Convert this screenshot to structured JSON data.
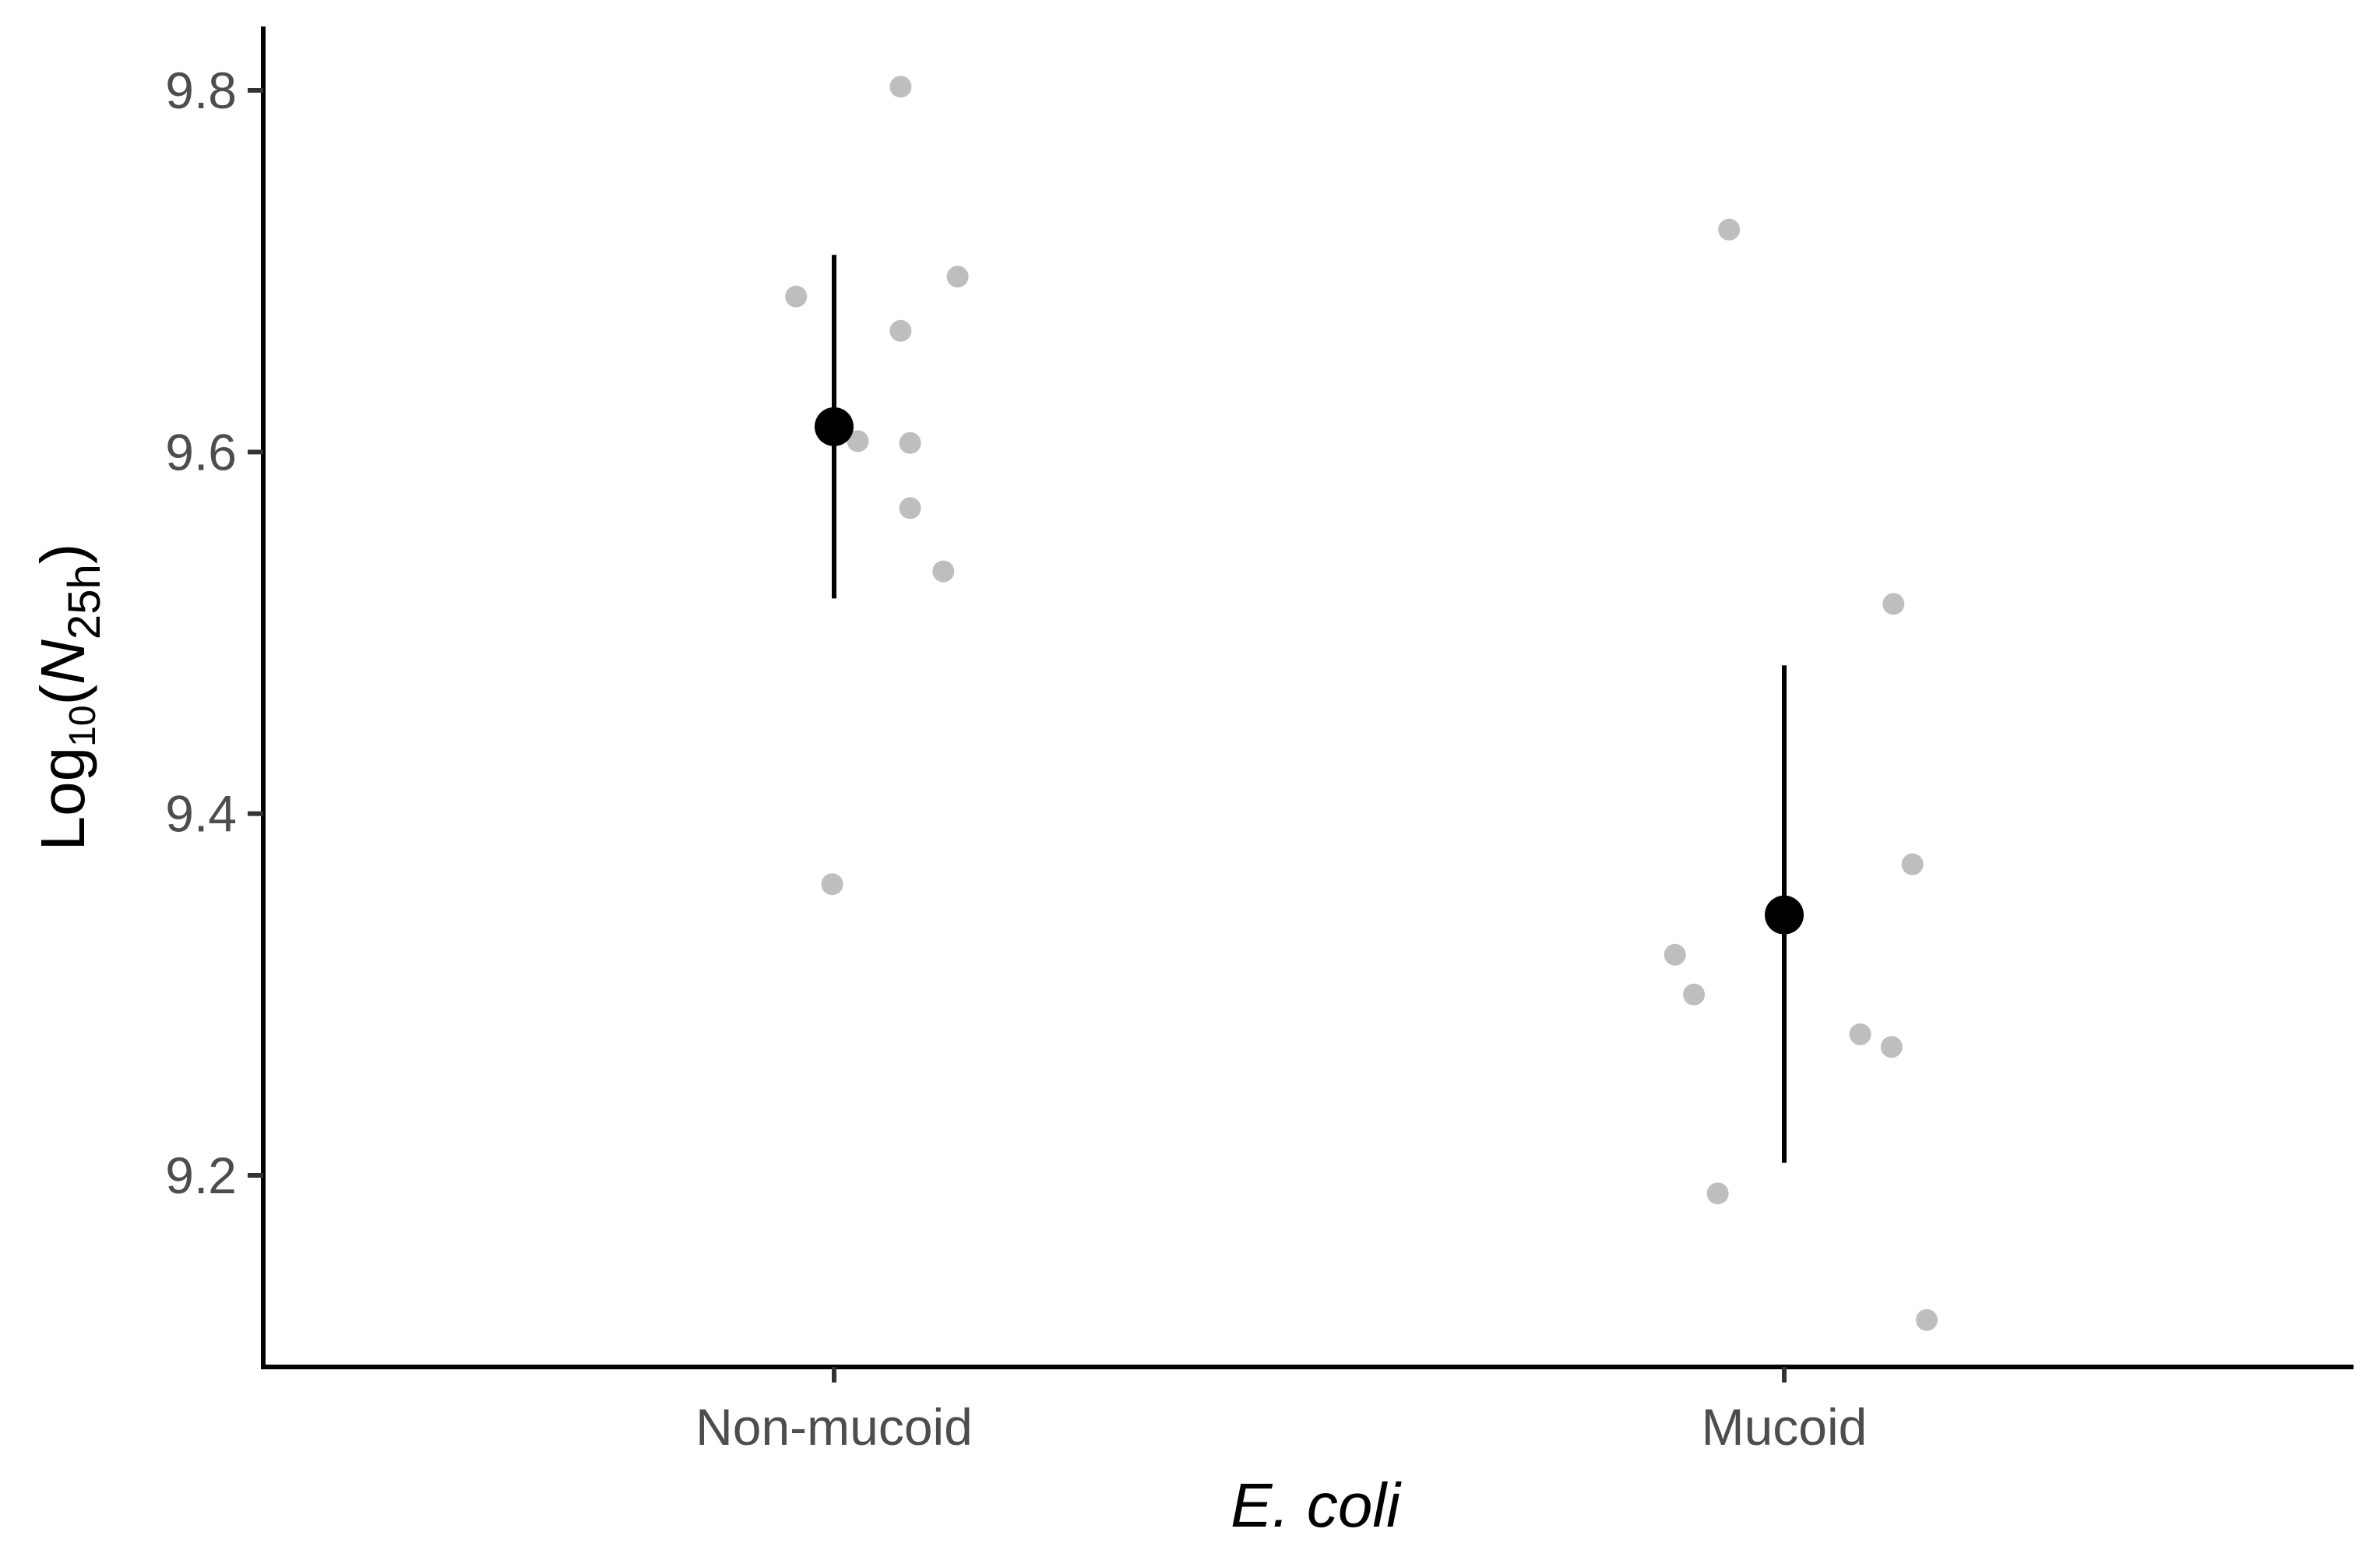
{
  "chart_data": {
    "type": "scatter",
    "title": "",
    "xlabel": "E. coli",
    "xlabel_italic": true,
    "ylabel": {
      "prefix": "Log",
      "prefix_subscript": "10",
      "open": "(",
      "variable": "N",
      "variable_subscript": "25h",
      "close": ")"
    },
    "categories": [
      "Non-mucoid",
      "Mucoid"
    ],
    "ylim": [
      9.1,
      9.835
    ],
    "yticks": [
      9.2,
      9.4,
      9.6,
      9.8
    ],
    "ytick_labels": [
      "9.2",
      "9.4",
      "9.6",
      "9.8"
    ],
    "grid": false,
    "legend": "none",
    "colors": {
      "raw_points": "#bebebe",
      "summary": "#000000",
      "axis": "#000000",
      "tick_labels": "#4d4d4d"
    },
    "series": [
      {
        "role": "raw",
        "points": [
          {
            "category": "Non-mucoid",
            "jitter": 0.07,
            "y": 9.802
          },
          {
            "category": "Non-mucoid",
            "jitter": 0.13,
            "y": 9.697
          },
          {
            "category": "Non-mucoid",
            "jitter": -0.04,
            "y": 9.686
          },
          {
            "category": "Non-mucoid",
            "jitter": 0.07,
            "y": 9.667
          },
          {
            "category": "Non-mucoid",
            "jitter": 0.025,
            "y": 9.606
          },
          {
            "category": "Non-mucoid",
            "jitter": 0.08,
            "y": 9.605
          },
          {
            "category": "Non-mucoid",
            "jitter": 0.08,
            "y": 9.569
          },
          {
            "category": "Non-mucoid",
            "jitter": 0.115,
            "y": 9.534
          },
          {
            "category": "Non-mucoid",
            "jitter": -0.002,
            "y": 9.361
          },
          {
            "category": "Mucoid",
            "jitter": -0.058,
            "y": 9.723
          },
          {
            "category": "Mucoid",
            "jitter": 0.115,
            "y": 9.516
          },
          {
            "category": "Mucoid",
            "jitter": 0.135,
            "y": 9.372
          },
          {
            "category": "Mucoid",
            "jitter": -0.115,
            "y": 9.322
          },
          {
            "category": "Mucoid",
            "jitter": -0.095,
            "y": 9.3
          },
          {
            "category": "Mucoid",
            "jitter": 0.08,
            "y": 9.278
          },
          {
            "category": "Mucoid",
            "jitter": 0.113,
            "y": 9.271
          },
          {
            "category": "Mucoid",
            "jitter": -0.07,
            "y": 9.19
          },
          {
            "category": "Mucoid",
            "jitter": 0.15,
            "y": 9.12
          }
        ]
      },
      {
        "role": "summary",
        "points": [
          {
            "category": "Non-mucoid",
            "mean": 9.614,
            "lower": 9.519,
            "upper": 9.709
          },
          {
            "category": "Mucoid",
            "mean": 9.344,
            "lower": 9.207,
            "upper": 9.482
          }
        ]
      }
    ]
  }
}
